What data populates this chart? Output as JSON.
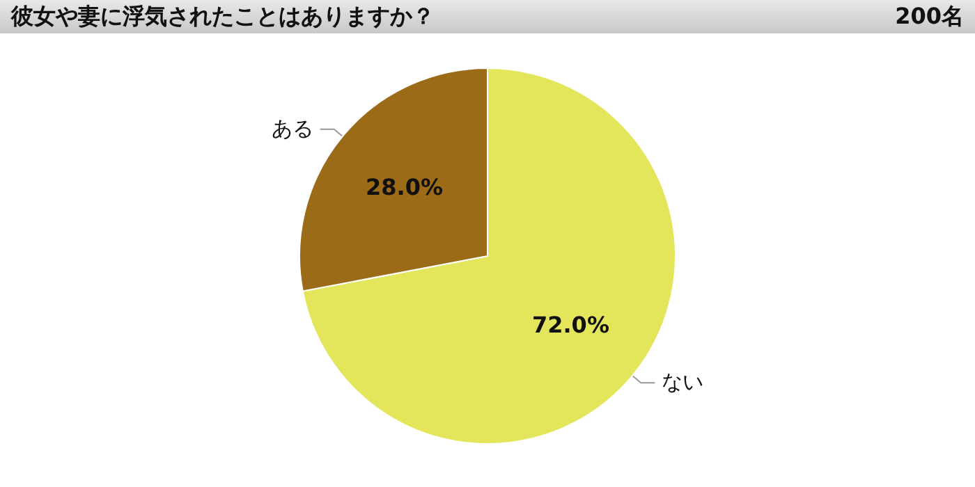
{
  "chart_data": {
    "type": "pie",
    "title": "彼女や妻に浮気されたことはありますか？",
    "subtitle": "200名",
    "categories": [
      "ない",
      "ある"
    ],
    "values": [
      72.0,
      28.0
    ],
    "colors": [
      "#e3e65b",
      "#9b6b17"
    ],
    "value_labels": [
      "72.0%",
      "28.0%"
    ]
  }
}
